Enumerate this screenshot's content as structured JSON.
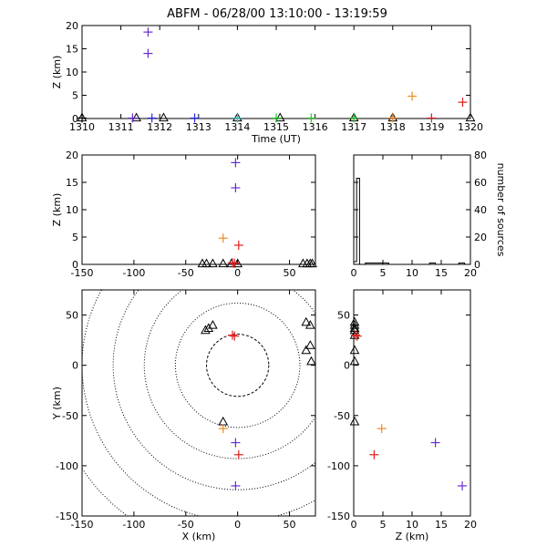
{
  "title": "ABFM - 06/28/00 13:10:00 - 13:19:59",
  "colors": {
    "purple": "#6a2ccf",
    "blue": "#2a2ae8",
    "orange": "#f08a24",
    "red": "#e02020",
    "green": "#22cc22",
    "cyan": "#1fcfcf",
    "black": "#000000"
  },
  "chart_data": [
    {
      "type": "scatter",
      "panel": "time-height",
      "xlabel": "Time (UT)",
      "ylabel": "Z (km)",
      "xlim": [
        1310,
        1320
      ],
      "ylim": [
        0,
        20
      ],
      "xticks": [
        "1310",
        "1311",
        "1312",
        "1313",
        "1314",
        "1315",
        "1316",
        "1317",
        "1318",
        "1319",
        "1320"
      ],
      "yticks": [
        "0",
        "5",
        "10",
        "15",
        "20"
      ],
      "points": [
        {
          "x": 1311.7,
          "y": 18.6,
          "color": "purple"
        },
        {
          "x": 1311.7,
          "y": 14.0,
          "color": "purple"
        },
        {
          "x": 1318.5,
          "y": 4.8,
          "color": "orange"
        },
        {
          "x": 1319.8,
          "y": 3.5,
          "color": "red"
        },
        {
          "x": 1310.0,
          "y": 0.1,
          "color": "black"
        },
        {
          "x": 1311.3,
          "y": 0.1,
          "color": "purple"
        },
        {
          "x": 1311.8,
          "y": 0.1,
          "color": "blue"
        },
        {
          "x": 1312.9,
          "y": 0.1,
          "color": "blue"
        },
        {
          "x": 1314.0,
          "y": 0.1,
          "color": "cyan"
        },
        {
          "x": 1315.0,
          "y": 0.1,
          "color": "green"
        },
        {
          "x": 1315.9,
          "y": 0.1,
          "color": "green"
        },
        {
          "x": 1317.0,
          "y": 0.1,
          "color": "green"
        },
        {
          "x": 1318.0,
          "y": 0.1,
          "color": "orange"
        },
        {
          "x": 1319.0,
          "y": 0.1,
          "color": "red"
        }
      ],
      "stations_x": [
        1310.0,
        1311.4,
        1312.1,
        1314.0,
        1315.1,
        1317.0,
        1318.0,
        1320.0
      ]
    },
    {
      "type": "scatter",
      "panel": "x-height",
      "xlabel": "",
      "ylabel": "Z (km)",
      "xlim": [
        -150,
        75
      ],
      "ylim": [
        0,
        20
      ],
      "xticks": [
        "-150",
        "-100",
        "-50",
        "0",
        "50"
      ],
      "yticks": [
        "0",
        "5",
        "10",
        "15",
        "20"
      ],
      "points": [
        {
          "x": -2,
          "y": 18.6,
          "color": "purple"
        },
        {
          "x": -2,
          "y": 14.0,
          "color": "purple"
        },
        {
          "x": -14,
          "y": 4.8,
          "color": "orange"
        },
        {
          "x": 1,
          "y": 3.5,
          "color": "red"
        },
        {
          "x": -5,
          "y": 0.3,
          "color": "red"
        },
        {
          "x": -3,
          "y": 0.2,
          "color": "red"
        }
      ],
      "stations_x": [
        -34,
        -30,
        -24,
        -14,
        -6,
        0,
        63,
        67,
        70,
        72
      ]
    },
    {
      "type": "bar",
      "panel": "histogram",
      "xlabel": "",
      "ylabel": "number of sources",
      "xlim": [
        0,
        20
      ],
      "ylim": [
        0,
        80
      ],
      "xticks": [
        "0",
        "5",
        "10",
        "15",
        "20"
      ],
      "yticks": [
        "0",
        "20",
        "40",
        "60",
        "80"
      ],
      "bins": [
        {
          "x0": 0,
          "x1": 0.5,
          "value": 2
        },
        {
          "x0": 0.5,
          "x1": 1,
          "value": 63
        },
        {
          "x0": 1,
          "x1": 2,
          "value": 0
        },
        {
          "x0": 2,
          "x1": 3,
          "value": 1
        },
        {
          "x0": 3,
          "x1": 4,
          "value": 1
        },
        {
          "x0": 4,
          "x1": 5,
          "value": 1
        },
        {
          "x0": 5,
          "x1": 6,
          "value": 1
        },
        {
          "x0": 6,
          "x1": 13,
          "value": 0
        },
        {
          "x0": 13,
          "x1": 14,
          "value": 1
        },
        {
          "x0": 14,
          "x1": 18,
          "value": 0
        },
        {
          "x0": 18,
          "x1": 19,
          "value": 1
        },
        {
          "x0": 19,
          "x1": 20,
          "value": 0
        }
      ]
    },
    {
      "type": "scatter",
      "panel": "plan-view",
      "xlabel": "X (km)",
      "ylabel": "Y (km)",
      "xlim": [
        -150,
        75
      ],
      "ylim": [
        -150,
        75
      ],
      "xticks": [
        "-150",
        "-100",
        "-50",
        "0",
        "50"
      ],
      "yticks": [
        "-150",
        "-100",
        "-50",
        "0",
        "50"
      ],
      "range_rings_km": [
        30,
        60,
        90,
        120,
        150,
        180
      ],
      "points": [
        {
          "x": -5,
          "y": 30,
          "color": "red"
        },
        {
          "x": -3,
          "y": 29,
          "color": "red"
        },
        {
          "x": -14,
          "y": -63,
          "color": "orange"
        },
        {
          "x": 1,
          "y": -89,
          "color": "red"
        },
        {
          "x": -2,
          "y": -77,
          "color": "purple"
        },
        {
          "x": -2,
          "y": -120,
          "color": "purple"
        }
      ],
      "stations": [
        {
          "x": -31,
          "y": 35
        },
        {
          "x": -28,
          "y": 37
        },
        {
          "x": -24,
          "y": 40
        },
        {
          "x": -14,
          "y": -56
        },
        {
          "x": 66,
          "y": 43
        },
        {
          "x": 70,
          "y": 40
        },
        {
          "x": 66,
          "y": 15
        },
        {
          "x": 70,
          "y": 20
        },
        {
          "x": 71,
          "y": 4
        }
      ]
    },
    {
      "type": "scatter",
      "panel": "z-y",
      "xlabel": "Z (km)",
      "ylabel": "",
      "xlim": [
        0,
        20
      ],
      "ylim": [
        -150,
        75
      ],
      "xticks": [
        "0",
        "5",
        "10",
        "15",
        "20"
      ],
      "yticks": [
        "-150",
        "-100",
        "-50",
        "0",
        "50"
      ],
      "points": [
        {
          "x": 0.3,
          "y": 30,
          "color": "red"
        },
        {
          "x": 0.6,
          "y": 29,
          "color": "red"
        },
        {
          "x": 4.8,
          "y": -63,
          "color": "orange"
        },
        {
          "x": 3.5,
          "y": -89,
          "color": "red"
        },
        {
          "x": 14.0,
          "y": -77,
          "color": "purple"
        },
        {
          "x": 18.6,
          "y": -120,
          "color": "purple"
        }
      ],
      "stations_y": [
        43,
        40,
        37,
        35,
        30,
        15,
        4,
        -56
      ]
    }
  ]
}
